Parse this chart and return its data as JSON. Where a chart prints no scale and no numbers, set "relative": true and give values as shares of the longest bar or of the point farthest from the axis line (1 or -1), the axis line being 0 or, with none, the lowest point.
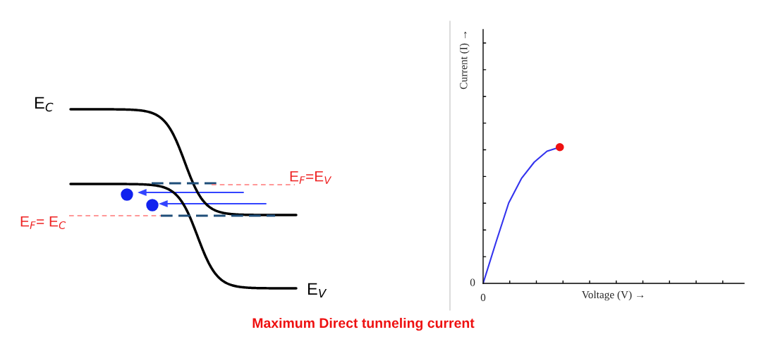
{
  "chart_data": [
    {
      "type": "other",
      "annotations": [
        "E$_{C}$",
        "E$_{F}$=E$_{V}$",
        "E$_{F}$= E$_{C}$",
        "E$_{V}$",
        "Maximum Direct tunneling current"
      ]
    },
    {
      "type": "line",
      "xlabel": "Voltage (V) →",
      "ylabel": "Current (I) →",
      "relative": true,
      "annotations": [
        "0",
        "0"
      ],
      "categories": [
        null,
        null,
        null,
        null,
        null,
        null,
        null
      ],
      "series": [
        {
          "type": "line",
          "color": "#3333ee",
          "values": [
            0,
            0.3,
            0.59,
            0.77,
            0.89,
            0.97,
            1
          ]
        }
      ]
    }
  ]
}
